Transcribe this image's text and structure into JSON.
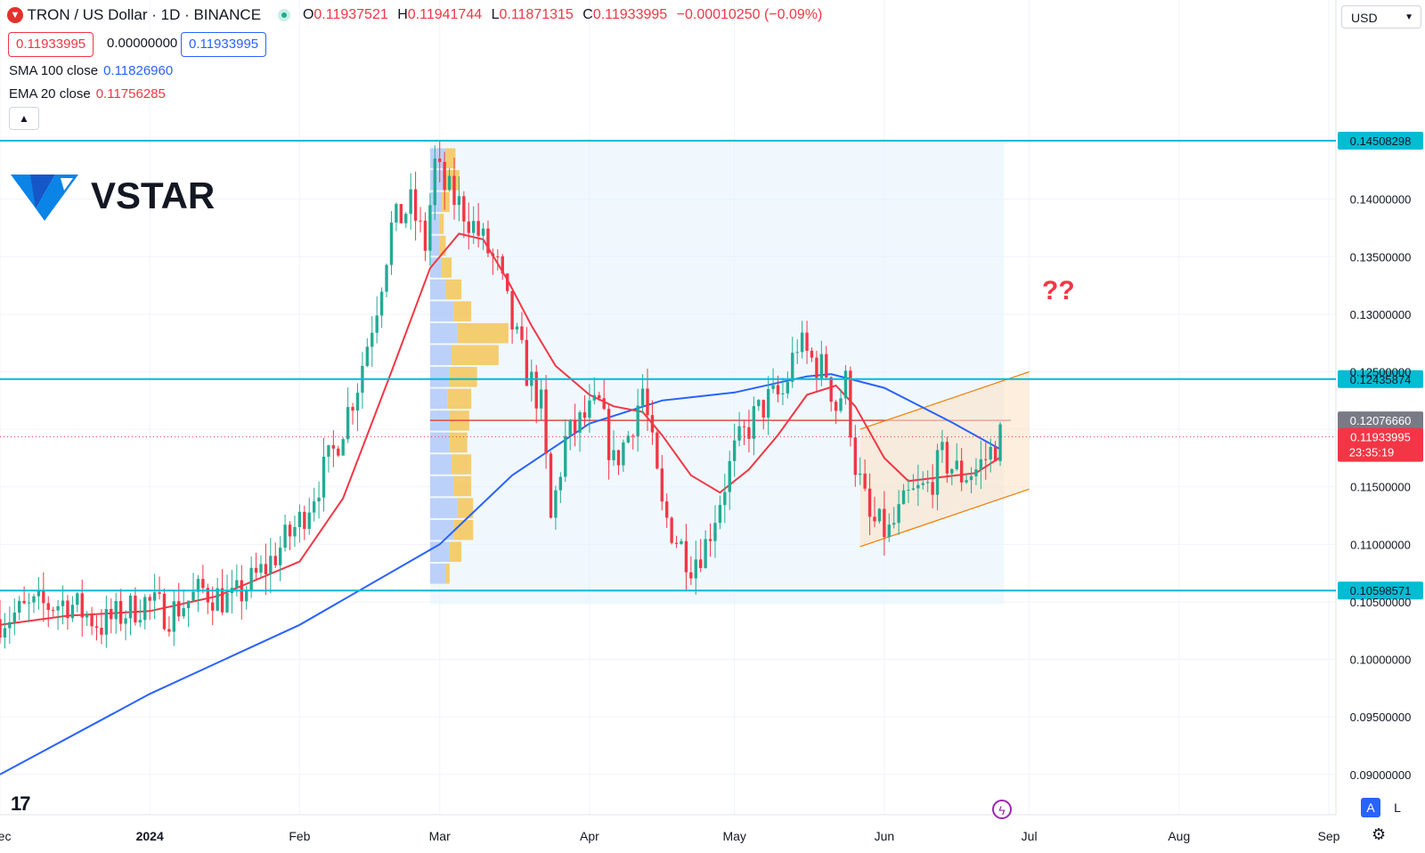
{
  "header": {
    "symbol": "TRON / US Dollar · 1D · BINANCE",
    "o_label": "O",
    "o_value": "0.11937521",
    "h_label": "H",
    "h_value": "0.11941744",
    "l_label": "L",
    "l_value": "0.11871315",
    "c_label": "C",
    "c_value": "0.11933995",
    "change": "−0.00010250 (−0.09%)",
    "sell_price": "0.11933995",
    "spread": "0.00000000",
    "buy_price": "0.11933995",
    "currency": "USD",
    "collapse_icon": "chevron-up-icon"
  },
  "indicators": {
    "sma_label": "SMA 100 close",
    "sma_value": "0.11826960",
    "ema_label": "EMA 20 close",
    "ema_value": "0.11756285"
  },
  "logo": {
    "text": "VSTAR"
  },
  "annotation": {
    "text": "??"
  },
  "colors": {
    "up": "#22ab94",
    "down": "#f23645",
    "sma": "#2962ff",
    "ema": "#f23645",
    "hline": "#00bcd4",
    "channel": "#f57c00"
  },
  "chart_data": {
    "type": "candlestick",
    "title": "TRON / US Dollar · 1D · BINANCE",
    "xlabel": "",
    "ylabel": "",
    "ylim": [
      0.0865,
      0.1505
    ],
    "x_ticks": [
      "Dec",
      "2024",
      "Feb",
      "Mar",
      "Apr",
      "May",
      "Jun",
      "Jul",
      "Aug",
      "Sep"
    ],
    "y_ticks": [
      "0.09000000",
      "0.09500000",
      "0.10000000",
      "0.10500000",
      "0.11000000",
      "0.11500000",
      "0.12000000",
      "0.12500000",
      "0.13000000",
      "0.13500000",
      "0.14000000"
    ],
    "levels": [
      {
        "price": 0.14508298,
        "label": "0.14508298"
      },
      {
        "price": 0.12435874,
        "label": "0.12435874"
      },
      {
        "price": 0.10598571,
        "label": "0.10598571"
      }
    ],
    "poc_label": "0.12076660",
    "last_price_label": "0.11933995",
    "countdown": "23:35:19",
    "anchors": [
      [
        "2023-12-01",
        0.1035
      ],
      [
        "2023-12-08",
        0.1045
      ],
      [
        "2023-12-15",
        0.105
      ],
      [
        "2023-12-22",
        0.103
      ],
      [
        "2023-12-31",
        0.105
      ],
      [
        "2024-01-05",
        0.104
      ],
      [
        "2024-01-12",
        0.106
      ],
      [
        "2024-01-18",
        0.105
      ],
      [
        "2024-01-25",
        0.108
      ],
      [
        "2024-02-01",
        0.112
      ],
      [
        "2024-02-08",
        0.118
      ],
      [
        "2024-02-13",
        0.124
      ],
      [
        "2024-02-17",
        0.131
      ],
      [
        "2024-02-20",
        0.1375
      ],
      [
        "2024-02-24",
        0.1395
      ],
      [
        "2024-02-27",
        0.136
      ],
      [
        "2024-02-29",
        0.143
      ],
      [
        "2024-03-02",
        0.141
      ],
      [
        "2024-03-06",
        0.139
      ],
      [
        "2024-03-09",
        0.137
      ],
      [
        "2024-03-13",
        0.134
      ],
      [
        "2024-03-16",
        0.129
      ],
      [
        "2024-03-19",
        0.125
      ],
      [
        "2024-03-22",
        0.122
      ],
      [
        "2024-03-24",
        0.112
      ],
      [
        "2024-03-27",
        0.119
      ],
      [
        "2024-03-31",
        0.121
      ],
      [
        "2024-04-03",
        0.122
      ],
      [
        "2024-04-06",
        0.117
      ],
      [
        "2024-04-09",
        0.1195
      ],
      [
        "2024-04-12",
        0.1235
      ],
      [
        "2024-04-16",
        0.113
      ],
      [
        "2024-04-19",
        0.1105
      ],
      [
        "2024-04-22",
        0.1085
      ],
      [
        "2024-04-25",
        0.11
      ],
      [
        "2024-04-28",
        0.114
      ],
      [
        "2024-05-01",
        0.118
      ],
      [
        "2024-05-05",
        0.121
      ],
      [
        "2024-05-08",
        0.1225
      ],
      [
        "2024-05-11",
        0.123
      ],
      [
        "2024-05-14",
        0.1275
      ],
      [
        "2024-05-17",
        0.126
      ],
      [
        "2024-05-20",
        0.125
      ],
      [
        "2024-05-22",
        0.122
      ],
      [
        "2024-05-24",
        0.124
      ],
      [
        "2024-05-26",
        0.117
      ],
      [
        "2024-05-29",
        0.112
      ],
      [
        "2024-06-02",
        0.111
      ],
      [
        "2024-06-06",
        0.114
      ],
      [
        "2024-06-10",
        0.115
      ],
      [
        "2024-06-13",
        0.1175
      ],
      [
        "2024-06-17",
        0.116
      ],
      [
        "2024-06-20",
        0.1165
      ],
      [
        "2024-06-23",
        0.118
      ],
      [
        "2024-06-25",
        0.11934
      ]
    ],
    "sma100": [
      [
        "2023-12-01",
        0.09
      ],
      [
        "2024-01-01",
        0.097
      ],
      [
        "2024-02-01",
        0.103
      ],
      [
        "2024-03-01",
        0.11
      ],
      [
        "2024-03-16",
        0.116
      ],
      [
        "2024-04-01",
        0.1205
      ],
      [
        "2024-04-16",
        0.1225
      ],
      [
        "2024-05-01",
        0.1232
      ],
      [
        "2024-05-16",
        0.1246
      ],
      [
        "2024-05-21",
        0.1248
      ],
      [
        "2024-06-01",
        0.1236
      ],
      [
        "2024-06-15",
        0.1206
      ],
      [
        "2024-06-25",
        0.11827
      ]
    ],
    "ema20": [
      [
        "2023-12-01",
        0.103
      ],
      [
        "2023-12-15",
        0.1038
      ],
      [
        "2024-01-01",
        0.1042
      ],
      [
        "2024-01-15",
        0.1055
      ],
      [
        "2024-02-01",
        0.1085
      ],
      [
        "2024-02-10",
        0.114
      ],
      [
        "2024-02-20",
        0.125
      ],
      [
        "2024-02-28",
        0.134
      ],
      [
        "2024-03-05",
        0.137
      ],
      [
        "2024-03-10",
        0.1365
      ],
      [
        "2024-03-15",
        0.133
      ],
      [
        "2024-03-20",
        0.129
      ],
      [
        "2024-03-25",
        0.1255
      ],
      [
        "2024-04-01",
        0.123
      ],
      [
        "2024-04-06",
        0.122
      ],
      [
        "2024-04-12",
        0.1215
      ],
      [
        "2024-04-16",
        0.1195
      ],
      [
        "2024-04-22",
        0.116
      ],
      [
        "2024-04-28",
        0.1145
      ],
      [
        "2024-05-04",
        0.1165
      ],
      [
        "2024-05-10",
        0.1195
      ],
      [
        "2024-05-16",
        0.123
      ],
      [
        "2024-05-22",
        0.1238
      ],
      [
        "2024-05-26",
        0.122
      ],
      [
        "2024-06-01",
        0.1175
      ],
      [
        "2024-06-06",
        0.1155
      ],
      [
        "2024-06-12",
        0.1158
      ],
      [
        "2024-06-20",
        0.1162
      ],
      [
        "2024-06-25",
        0.11756
      ]
    ],
    "volume_profile": {
      "price_from": 0.1065,
      "price_to": 0.1445,
      "rows": 20,
      "up": [
        8,
        10,
        12,
        14,
        12,
        11,
        10,
        10,
        9,
        10,
        11,
        14,
        12,
        8,
        6,
        5,
        5,
        6,
        7,
        8
      ],
      "down": [
        2,
        6,
        10,
        8,
        9,
        10,
        9,
        10,
        12,
        14,
        24,
        26,
        9,
        8,
        5,
        3,
        2,
        4,
        8,
        5
      ]
    },
    "channel": {
      "upper": [
        [
          "2024-05-27",
          0.12
        ],
        [
          "2024-07-01",
          0.125
        ]
      ],
      "lower": [
        [
          "2024-05-27",
          0.1098
        ],
        [
          "2024-07-01",
          0.1148
        ]
      ]
    }
  }
}
